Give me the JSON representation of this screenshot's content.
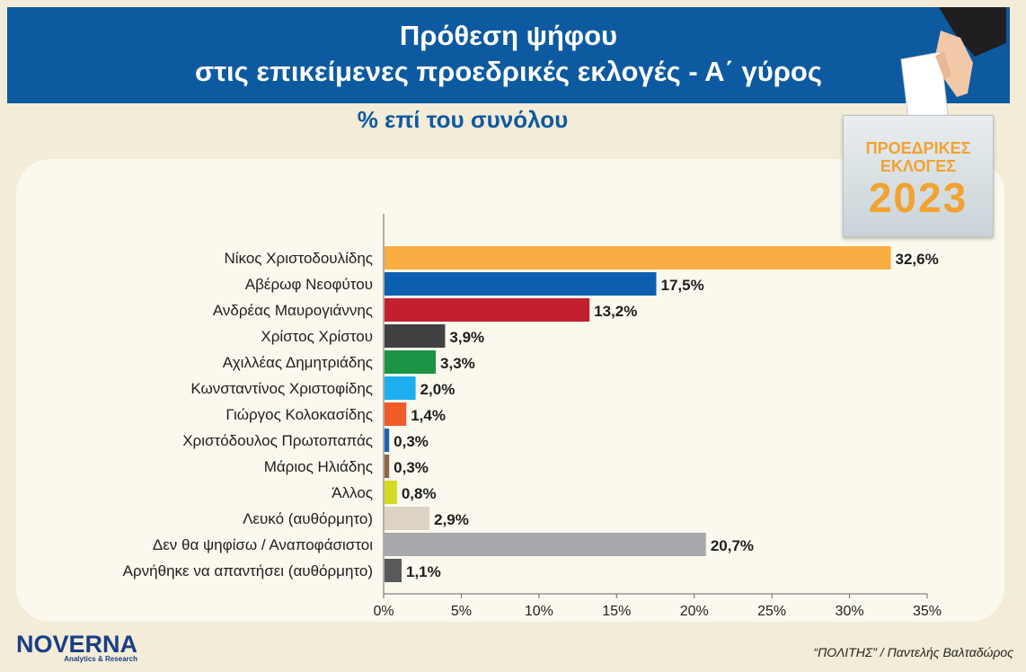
{
  "header": {
    "title_line1": "Πρόθεση ψήφου",
    "title_line2": "στις επικείμενες προεδρικές εκλογές - Α΄ γύρος",
    "subtitle": "% επί του συνόλου"
  },
  "badge": {
    "line1": "ΠΡΟΕΔΡΙΚΕΣ",
    "line2": "ΕΚΛΟΓΕΣ",
    "year": "2023"
  },
  "footer": {
    "logo": "NOVERNA",
    "logo_tagline": "Analytics & Research",
    "credit": "“ΠΟΛΙΤΗΣ” / Παντελής Βαλταδώρος"
  },
  "chart_data": {
    "type": "bar",
    "orientation": "horizontal",
    "categories": [
      "Νίκος Χριστοδουλίδης",
      "Αβέρωφ Νεοφύτου",
      "Ανδρέας Μαυρογιάννης",
      "Χρίστος Χρίστου",
      "Αχιλλέας Δημητριάδης",
      "Κωνσταντίνος Χριστοφίδης",
      "Γιώργος Κολοκασίδης",
      "Χριστόδουλος Πρωτοπαπάς",
      "Μάριος Ηλιάδης",
      "Άλλος",
      "Λευκό (αυθόρμητο)",
      "Δεν θα ψηφίσω / Αναποφάσιστοι",
      "Αρνήθηκε να απαντήσει (αυθόρμητο)"
    ],
    "values": [
      32.6,
      17.5,
      13.2,
      3.9,
      3.3,
      2.0,
      1.4,
      0.3,
      0.3,
      0.8,
      2.9,
      20.7,
      1.1
    ],
    "value_labels": [
      "32,6%",
      "17,5%",
      "13,2%",
      "3,9%",
      "3,3%",
      "2,0%",
      "1,4%",
      "0,3%",
      "0,3%",
      "0,8%",
      "2,9%",
      "20,7%",
      "1,1%"
    ],
    "colors": [
      "#f9ad42",
      "#0d5fb0",
      "#c3202e",
      "#414143",
      "#1c9445",
      "#1daeed",
      "#f15a29",
      "#1a65b4",
      "#8d6748",
      "#d3db22",
      "#dcd3c4",
      "#a7a9ac",
      "#58595b"
    ],
    "xlim": [
      0,
      35
    ],
    "xticks": [
      0,
      5,
      10,
      15,
      20,
      25,
      30,
      35
    ],
    "xtick_labels": [
      "0%",
      "5%",
      "10%",
      "15%",
      "20%",
      "25%",
      "30%",
      "35%"
    ],
    "grid": false,
    "legend": "none"
  }
}
